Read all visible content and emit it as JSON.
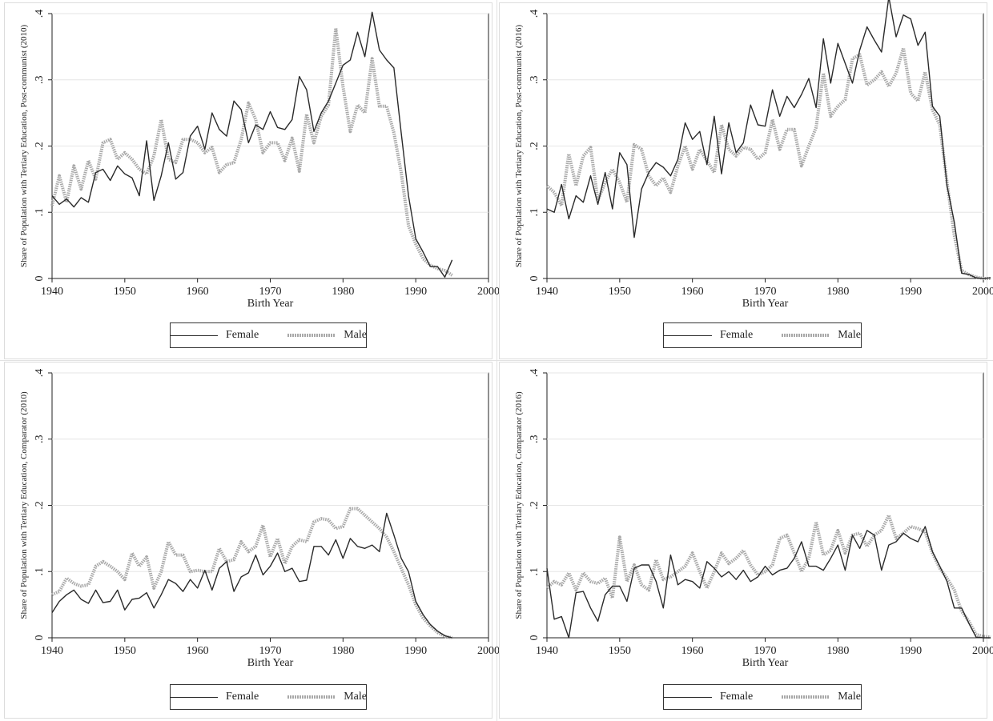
{
  "legend": {
    "female": "Female",
    "male": "Male"
  },
  "chart_data": [
    {
      "type": "line",
      "xlabel": "Birth Year",
      "ylabel": "Share of Population with Tertiary Education, Post-communist (2010)",
      "xlim": [
        1940,
        2000
      ],
      "ylim": [
        0,
        0.4
      ],
      "xticks": [
        "1940",
        "1950",
        "1960",
        "1970",
        "1980",
        "1990",
        "2000"
      ],
      "yticks": [
        "0",
        ".1",
        ".2",
        ".3",
        ".4"
      ],
      "grid": true,
      "legend_position": "bottom",
      "x": [
        1940,
        1941,
        1942,
        1943,
        1944,
        1945,
        1946,
        1947,
        1948,
        1949,
        1950,
        1951,
        1952,
        1953,
        1954,
        1955,
        1956,
        1957,
        1958,
        1959,
        1960,
        1961,
        1962,
        1963,
        1964,
        1965,
        1966,
        1967,
        1968,
        1969,
        1970,
        1971,
        1972,
        1973,
        1974,
        1975,
        1976,
        1977,
        1978,
        1979,
        1980,
        1981,
        1982,
        1983,
        1984,
        1985,
        1986,
        1987,
        1988,
        1989,
        1990,
        1991,
        1992,
        1993,
        1994,
        1995
      ],
      "series": [
        {
          "name": "Female",
          "values": [
            0.125,
            0.112,
            0.12,
            0.108,
            0.122,
            0.115,
            0.16,
            0.165,
            0.148,
            0.17,
            0.158,
            0.152,
            0.125,
            0.208,
            0.118,
            0.155,
            0.205,
            0.15,
            0.16,
            0.215,
            0.23,
            0.195,
            0.25,
            0.225,
            0.215,
            0.268,
            0.255,
            0.205,
            0.232,
            0.225,
            0.252,
            0.228,
            0.225,
            0.24,
            0.305,
            0.285,
            0.222,
            0.25,
            0.268,
            0.295,
            0.322,
            0.33,
            0.372,
            0.335,
            0.402,
            0.345,
            0.33,
            0.318,
            0.22,
            0.125,
            0.06,
            0.04,
            0.018,
            0.018,
            0.002,
            0.028
          ]
        },
        {
          "name": "Male",
          "values": [
            0.11,
            0.155,
            0.115,
            0.17,
            0.135,
            0.178,
            0.15,
            0.205,
            0.21,
            0.18,
            0.19,
            0.18,
            0.165,
            0.158,
            0.185,
            0.24,
            0.18,
            0.175,
            0.21,
            0.21,
            0.205,
            0.19,
            0.198,
            0.16,
            0.172,
            0.175,
            0.21,
            0.265,
            0.24,
            0.19,
            0.205,
            0.205,
            0.178,
            0.212,
            0.162,
            0.248,
            0.205,
            0.245,
            0.262,
            0.378,
            0.29,
            0.222,
            0.262,
            0.25,
            0.332,
            0.26,
            0.26,
            0.22,
            0.16,
            0.08,
            0.052,
            0.03,
            0.02,
            0.015,
            0.012,
            0.005
          ]
        }
      ]
    },
    {
      "type": "line",
      "xlabel": "Birth Year",
      "ylabel": "Share of Population with Tertiary Education, Post-communist (2016)",
      "xlim": [
        1940,
        2000
      ],
      "ylim": [
        0,
        0.4
      ],
      "xticks": [
        "1940",
        "1950",
        "1960",
        "1970",
        "1980",
        "1990",
        "2000"
      ],
      "yticks": [
        "0",
        ".1",
        ".2",
        ".3",
        ".4"
      ],
      "grid": true,
      "legend_position": "bottom",
      "x": [
        1940,
        1941,
        1942,
        1943,
        1944,
        1945,
        1946,
        1947,
        1948,
        1949,
        1950,
        1951,
        1952,
        1953,
        1954,
        1955,
        1956,
        1957,
        1958,
        1959,
        1960,
        1961,
        1962,
        1963,
        1964,
        1965,
        1966,
        1967,
        1968,
        1969,
        1970,
        1971,
        1972,
        1973,
        1974,
        1975,
        1976,
        1977,
        1978,
        1979,
        1980,
        1981,
        1982,
        1983,
        1984,
        1985,
        1986,
        1987,
        1988,
        1989,
        1990,
        1991,
        1992,
        1993,
        1994,
        1995,
        1996,
        1997,
        1998,
        1999,
        2000,
        2001
      ],
      "series": [
        {
          "name": "Female",
          "values": [
            0.105,
            0.1,
            0.142,
            0.09,
            0.125,
            0.115,
            0.155,
            0.112,
            0.16,
            0.105,
            0.19,
            0.172,
            0.062,
            0.135,
            0.16,
            0.175,
            0.168,
            0.155,
            0.18,
            0.235,
            0.21,
            0.222,
            0.172,
            0.245,
            0.158,
            0.235,
            0.19,
            0.205,
            0.262,
            0.232,
            0.23,
            0.285,
            0.245,
            0.275,
            0.258,
            0.278,
            0.302,
            0.258,
            0.362,
            0.295,
            0.355,
            0.325,
            0.295,
            0.345,
            0.38,
            0.36,
            0.342,
            0.425,
            0.365,
            0.398,
            0.392,
            0.352,
            0.372,
            0.26,
            0.245,
            0.14,
            0.085,
            0.008,
            0.006,
            0.001,
            0.0,
            0.001
          ]
        },
        {
          "name": "Male",
          "values": [
            0.14,
            0.13,
            0.11,
            0.188,
            0.14,
            0.185,
            0.198,
            0.118,
            0.145,
            0.165,
            0.145,
            0.115,
            0.202,
            0.195,
            0.155,
            0.14,
            0.152,
            0.13,
            0.17,
            0.2,
            0.165,
            0.195,
            0.178,
            0.16,
            0.232,
            0.195,
            0.185,
            0.198,
            0.195,
            0.18,
            0.19,
            0.24,
            0.195,
            0.225,
            0.225,
            0.17,
            0.2,
            0.228,
            0.31,
            0.245,
            0.26,
            0.27,
            0.332,
            0.338,
            0.292,
            0.3,
            0.312,
            0.29,
            0.31,
            0.348,
            0.28,
            0.268,
            0.312,
            0.255,
            0.232,
            0.145,
            0.065,
            0.012,
            0.006,
            0.002,
            0.0,
            0.0
          ]
        }
      ]
    },
    {
      "type": "line",
      "xlabel": "Birth Year",
      "ylabel": "Share of Population with Tertiary Education, Comparator (2010)",
      "xlim": [
        1940,
        2000
      ],
      "ylim": [
        0,
        0.4
      ],
      "xticks": [
        "1940",
        "1950",
        "1960",
        "1970",
        "1980",
        "1990",
        "2000"
      ],
      "yticks": [
        "0",
        ".1",
        ".2",
        ".3",
        ".4"
      ],
      "grid": true,
      "legend_position": "bottom",
      "x": [
        1940,
        1941,
        1942,
        1943,
        1944,
        1945,
        1946,
        1947,
        1948,
        1949,
        1950,
        1951,
        1952,
        1953,
        1954,
        1955,
        1956,
        1957,
        1958,
        1959,
        1960,
        1961,
        1962,
        1963,
        1964,
        1965,
        1966,
        1967,
        1968,
        1969,
        1970,
        1971,
        1972,
        1973,
        1974,
        1975,
        1976,
        1977,
        1978,
        1979,
        1980,
        1981,
        1982,
        1983,
        1984,
        1985,
        1986,
        1987,
        1988,
        1989,
        1990,
        1991,
        1992,
        1993,
        1994,
        1995
      ],
      "series": [
        {
          "name": "Female",
          "values": [
            0.038,
            0.055,
            0.065,
            0.072,
            0.058,
            0.052,
            0.072,
            0.053,
            0.055,
            0.072,
            0.042,
            0.058,
            0.06,
            0.068,
            0.045,
            0.065,
            0.088,
            0.082,
            0.07,
            0.088,
            0.075,
            0.102,
            0.072,
            0.105,
            0.115,
            0.07,
            0.092,
            0.098,
            0.125,
            0.095,
            0.108,
            0.128,
            0.1,
            0.105,
            0.085,
            0.087,
            0.138,
            0.138,
            0.125,
            0.148,
            0.12,
            0.15,
            0.138,
            0.135,
            0.14,
            0.13,
            0.188,
            0.155,
            0.12,
            0.1,
            0.055,
            0.035,
            0.02,
            0.01,
            0.003,
            0.0
          ]
        },
        {
          "name": "Male",
          "values": [
            0.065,
            0.07,
            0.09,
            0.082,
            0.078,
            0.08,
            0.108,
            0.115,
            0.108,
            0.1,
            0.088,
            0.128,
            0.108,
            0.122,
            0.075,
            0.1,
            0.145,
            0.125,
            0.125,
            0.1,
            0.102,
            0.1,
            0.1,
            0.135,
            0.115,
            0.118,
            0.145,
            0.13,
            0.138,
            0.17,
            0.122,
            0.15,
            0.112,
            0.138,
            0.148,
            0.145,
            0.175,
            0.18,
            0.178,
            0.165,
            0.168,
            0.195,
            0.195,
            0.185,
            0.175,
            0.165,
            0.152,
            0.13,
            0.105,
            0.08,
            0.05,
            0.03,
            0.018,
            0.008,
            0.002,
            0.0
          ]
        }
      ]
    },
    {
      "type": "line",
      "xlabel": "Birth Year",
      "ylabel": "Share of Population with Tertiary Education, Comparator (2016)",
      "xlim": [
        1940,
        2000
      ],
      "ylim": [
        0,
        0.4
      ],
      "xticks": [
        "1940",
        "1950",
        "1960",
        "1970",
        "1980",
        "1990",
        "2000"
      ],
      "yticks": [
        "0",
        ".1",
        ".2",
        ".3",
        ".4"
      ],
      "grid": true,
      "legend_position": "bottom",
      "x": [
        1940,
        1941,
        1942,
        1943,
        1944,
        1945,
        1946,
        1947,
        1948,
        1949,
        1950,
        1951,
        1952,
        1953,
        1954,
        1955,
        1956,
        1957,
        1958,
        1959,
        1960,
        1961,
        1962,
        1963,
        1964,
        1965,
        1966,
        1967,
        1968,
        1969,
        1970,
        1971,
        1972,
        1973,
        1974,
        1975,
        1976,
        1977,
        1978,
        1979,
        1980,
        1981,
        1982,
        1983,
        1984,
        1985,
        1986,
        1987,
        1988,
        1989,
        1990,
        1991,
        1992,
        1993,
        1994,
        1995,
        1996,
        1997,
        1998,
        1999,
        2000,
        2001
      ],
      "series": [
        {
          "name": "Female",
          "values": [
            0.105,
            0.028,
            0.032,
            0.0,
            0.068,
            0.07,
            0.045,
            0.025,
            0.065,
            0.078,
            0.078,
            0.055,
            0.105,
            0.11,
            0.11,
            0.085,
            0.045,
            0.125,
            0.08,
            0.088,
            0.085,
            0.075,
            0.115,
            0.105,
            0.092,
            0.1,
            0.088,
            0.102,
            0.085,
            0.092,
            0.108,
            0.095,
            0.102,
            0.105,
            0.12,
            0.145,
            0.108,
            0.108,
            0.102,
            0.12,
            0.14,
            0.102,
            0.155,
            0.135,
            0.162,
            0.155,
            0.102,
            0.14,
            0.145,
            0.158,
            0.15,
            0.145,
            0.168,
            0.13,
            0.108,
            0.085,
            0.045,
            0.045,
            0.022,
            0.001,
            0.0,
            0.0
          ]
        },
        {
          "name": "Male",
          "values": [
            0.075,
            0.085,
            0.08,
            0.098,
            0.072,
            0.098,
            0.085,
            0.082,
            0.09,
            0.06,
            0.152,
            0.085,
            0.11,
            0.08,
            0.072,
            0.118,
            0.088,
            0.092,
            0.1,
            0.108,
            0.128,
            0.1,
            0.075,
            0.1,
            0.128,
            0.112,
            0.12,
            0.132,
            0.11,
            0.095,
            0.1,
            0.11,
            0.15,
            0.155,
            0.128,
            0.1,
            0.12,
            0.175,
            0.125,
            0.132,
            0.162,
            0.128,
            0.155,
            0.158,
            0.138,
            0.155,
            0.162,
            0.185,
            0.15,
            0.158,
            0.168,
            0.165,
            0.16,
            0.128,
            0.105,
            0.09,
            0.072,
            0.04,
            0.025,
            0.005,
            0.002,
            0.001
          ]
        }
      ]
    }
  ]
}
